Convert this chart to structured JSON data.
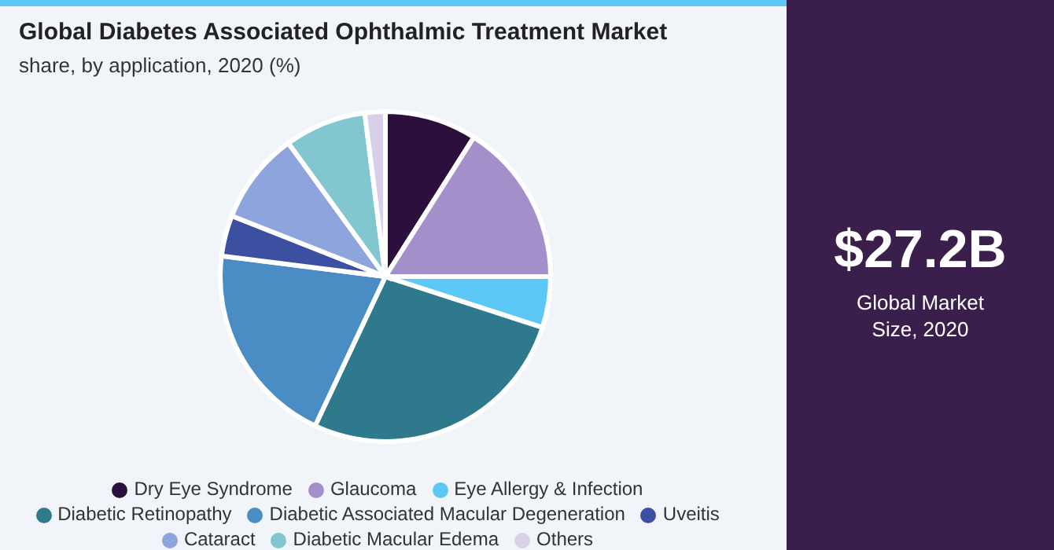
{
  "chart_data": {
    "type": "pie",
    "title": "Global Diabetes Associated Ophthalmic Treatment Market",
    "subtitle": "share, by application, 2020 (%)",
    "categories": [
      "Dry Eye Syndrome",
      "Glaucoma",
      "Eye Allergy & Infection",
      "Diabetic Retinopathy",
      "Diabetic Associated Macular Degeneration",
      "Uveitis",
      "Cataract",
      "Diabetic Macular Edema",
      "Others"
    ],
    "values": [
      9,
      16,
      5,
      27,
      20,
      4,
      9,
      8,
      2
    ],
    "colors": [
      "#2d0f3e",
      "#a38fc9",
      "#5bc8f5",
      "#2e7a8c",
      "#4a8cc4",
      "#3d4fa0",
      "#8ea4dc",
      "#82c6d0",
      "#d8d0e8"
    ],
    "legend": "bottom",
    "annotations": [
      "$27.2B",
      "Global Market Size, 2020"
    ]
  }
}
